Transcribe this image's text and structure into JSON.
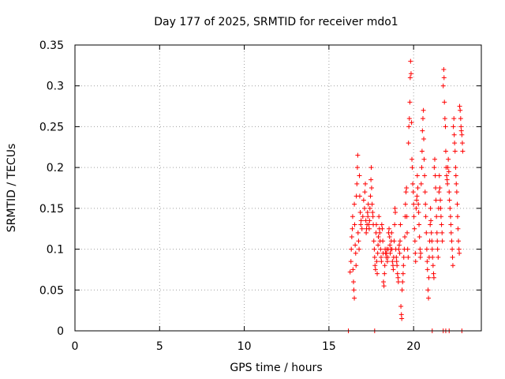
{
  "chart_data": {
    "type": "scatter",
    "title": "Day 177 of 2025, SRMTID for receiver mdo1",
    "xlabel": "GPS time / hours",
    "ylabel": "SRMTID / TECUs",
    "xlim": [
      0,
      24
    ],
    "ylim": [
      0,
      0.35
    ],
    "x_ticks": [
      0,
      5,
      10,
      15,
      20
    ],
    "x_tick_labels": [
      "0",
      "5",
      "10",
      "15",
      "20"
    ],
    "y_ticks": [
      0,
      0.05,
      0.1,
      0.15,
      0.2,
      0.25,
      0.3,
      0.35
    ],
    "y_tick_labels": [
      "0",
      "0.05",
      "0.1",
      "0.15",
      "0.2",
      "0.25",
      "0.3",
      "0.35"
    ],
    "grid": true,
    "marker": "plus",
    "color": "#ff0000",
    "series": [
      {
        "name": "SRMTID",
        "points": [
          [
            16.15,
            0.0
          ],
          [
            17.7,
            0.0
          ],
          [
            21.1,
            0.0
          ],
          [
            21.75,
            0.0
          ],
          [
            21.9,
            0.0
          ],
          [
            22.1,
            0.0
          ],
          [
            22.85,
            0.0
          ],
          [
            16.25,
            0.072
          ],
          [
            16.3,
            0.085
          ],
          [
            16.32,
            0.1
          ],
          [
            16.35,
            0.115
          ],
          [
            16.38,
            0.125
          ],
          [
            16.4,
            0.14
          ],
          [
            16.42,
            0.075
          ],
          [
            16.45,
            0.06
          ],
          [
            16.47,
            0.05
          ],
          [
            16.5,
            0.04
          ],
          [
            16.5,
            0.155
          ],
          [
            16.52,
            0.13
          ],
          [
            16.55,
            0.105
          ],
          [
            16.58,
            0.095
          ],
          [
            16.6,
            0.08
          ],
          [
            16.62,
            0.165
          ],
          [
            16.65,
            0.18
          ],
          [
            16.68,
            0.2
          ],
          [
            16.7,
            0.215
          ],
          [
            16.72,
            0.12
          ],
          [
            16.75,
            0.11
          ],
          [
            16.78,
            0.1
          ],
          [
            16.8,
            0.19
          ],
          [
            16.82,
            0.165
          ],
          [
            16.85,
            0.145
          ],
          [
            16.88,
            0.13
          ],
          [
            16.9,
            0.135
          ],
          [
            16.95,
            0.125
          ],
          [
            17.0,
            0.14
          ],
          [
            17.05,
            0.16
          ],
          [
            17.1,
            0.15
          ],
          [
            17.12,
            0.17
          ],
          [
            17.15,
            0.18
          ],
          [
            17.18,
            0.135
          ],
          [
            17.2,
            0.12
          ],
          [
            17.22,
            0.125
          ],
          [
            17.25,
            0.13
          ],
          [
            17.28,
            0.145
          ],
          [
            17.3,
            0.14
          ],
          [
            17.32,
            0.155
          ],
          [
            17.35,
            0.13
          ],
          [
            17.38,
            0.125
          ],
          [
            17.4,
            0.135
          ],
          [
            17.42,
            0.15
          ],
          [
            17.45,
            0.165
          ],
          [
            17.48,
            0.185
          ],
          [
            17.5,
            0.2
          ],
          [
            17.52,
            0.175
          ],
          [
            17.55,
            0.155
          ],
          [
            17.58,
            0.145
          ],
          [
            17.6,
            0.14
          ],
          [
            17.62,
            0.13
          ],
          [
            17.65,
            0.11
          ],
          [
            17.68,
            0.1
          ],
          [
            17.7,
            0.09
          ],
          [
            17.72,
            0.08
          ],
          [
            17.75,
            0.075
          ],
          [
            17.78,
            0.12
          ],
          [
            17.8,
            0.13
          ],
          [
            17.82,
            0.085
          ],
          [
            17.85,
            0.07
          ],
          [
            17.88,
            0.095
          ],
          [
            17.9,
            0.105
          ],
          [
            17.92,
            0.115
          ],
          [
            17.95,
            0.14
          ],
          [
            17.98,
            0.125
          ],
          [
            18.0,
            0.12
          ],
          [
            18.02,
            0.11
          ],
          [
            18.05,
            0.1
          ],
          [
            18.08,
            0.09
          ],
          [
            18.1,
            0.085
          ],
          [
            18.12,
            0.13
          ],
          [
            18.15,
            0.125
          ],
          [
            18.18,
            0.11
          ],
          [
            18.2,
            0.095
          ],
          [
            18.22,
            0.06
          ],
          [
            18.25,
            0.055
          ],
          [
            18.28,
            0.07
          ],
          [
            18.3,
            0.08
          ],
          [
            18.32,
            0.1
          ],
          [
            18.35,
            0.095
          ],
          [
            18.38,
            0.09
          ],
          [
            18.4,
            0.095
          ],
          [
            18.42,
            0.1
          ],
          [
            18.45,
            0.085
          ],
          [
            18.48,
            0.09
          ],
          [
            18.5,
            0.1
          ],
          [
            18.52,
            0.12
          ],
          [
            18.55,
            0.125
          ],
          [
            18.58,
            0.115
          ],
          [
            18.6,
            0.105
          ],
          [
            18.62,
            0.095
          ],
          [
            18.65,
            0.1
          ],
          [
            18.68,
            0.11
          ],
          [
            18.7,
            0.12
          ],
          [
            18.72,
            0.1
          ],
          [
            18.75,
            0.085
          ],
          [
            18.78,
            0.08
          ],
          [
            18.8,
            0.075
          ],
          [
            18.82,
            0.09
          ],
          [
            18.85,
            0.11
          ],
          [
            18.88,
            0.13
          ],
          [
            18.9,
            0.15
          ],
          [
            18.92,
            0.145
          ],
          [
            18.95,
            0.1
          ],
          [
            18.98,
            0.09
          ],
          [
            19.0,
            0.085
          ],
          [
            19.02,
            0.08
          ],
          [
            19.05,
            0.07
          ],
          [
            19.08,
            0.065
          ],
          [
            19.1,
            0.06
          ],
          [
            19.12,
            0.1
          ],
          [
            19.15,
            0.105
          ],
          [
            19.18,
            0.095
          ],
          [
            19.2,
            0.11
          ],
          [
            19.22,
            0.13
          ],
          [
            19.25,
            0.03
          ],
          [
            19.28,
            0.02
          ],
          [
            19.3,
            0.015
          ],
          [
            19.32,
            0.05
          ],
          [
            19.35,
            0.06
          ],
          [
            19.38,
            0.07
          ],
          [
            19.4,
            0.08
          ],
          [
            19.42,
            0.09
          ],
          [
            19.45,
            0.1
          ],
          [
            19.48,
            0.115
          ],
          [
            19.5,
            0.14
          ],
          [
            19.52,
            0.155
          ],
          [
            19.55,
            0.17
          ],
          [
            19.58,
            0.175
          ],
          [
            19.6,
            0.14
          ],
          [
            19.62,
            0.12
          ],
          [
            19.65,
            0.1
          ],
          [
            19.68,
            0.09
          ],
          [
            19.7,
            0.23
          ],
          [
            19.72,
            0.25
          ],
          [
            19.75,
            0.26
          ],
          [
            19.78,
            0.28
          ],
          [
            19.8,
            0.31
          ],
          [
            19.82,
            0.33
          ],
          [
            19.85,
            0.315
          ],
          [
            19.88,
            0.255
          ],
          [
            19.9,
            0.21
          ],
          [
            19.92,
            0.2
          ],
          [
            19.95,
            0.18
          ],
          [
            19.98,
            0.17
          ],
          [
            20.0,
            0.155
          ],
          [
            20.02,
            0.14
          ],
          [
            20.05,
            0.125
          ],
          [
            20.08,
            0.11
          ],
          [
            20.1,
            0.095
          ],
          [
            20.12,
            0.085
          ],
          [
            20.15,
            0.15
          ],
          [
            20.18,
            0.16
          ],
          [
            20.2,
            0.165
          ],
          [
            20.22,
            0.19
          ],
          [
            20.25,
            0.175
          ],
          [
            20.28,
            0.155
          ],
          [
            20.3,
            0.145
          ],
          [
            20.32,
            0.13
          ],
          [
            20.35,
            0.115
          ],
          [
            20.38,
            0.1
          ],
          [
            20.4,
            0.09
          ],
          [
            20.42,
            0.095
          ],
          [
            20.45,
            0.18
          ],
          [
            20.48,
            0.2
          ],
          [
            20.5,
            0.22
          ],
          [
            20.52,
            0.245
          ],
          [
            20.55,
            0.26
          ],
          [
            20.58,
            0.27
          ],
          [
            20.6,
            0.235
          ],
          [
            20.62,
            0.21
          ],
          [
            20.65,
            0.19
          ],
          [
            20.68,
            0.17
          ],
          [
            20.7,
            0.155
          ],
          [
            20.72,
            0.14
          ],
          [
            20.75,
            0.12
          ],
          [
            20.78,
            0.1
          ],
          [
            20.8,
            0.085
          ],
          [
            20.82,
            0.075
          ],
          [
            20.85,
            0.05
          ],
          [
            20.88,
            0.04
          ],
          [
            20.9,
            0.065
          ],
          [
            20.92,
            0.09
          ],
          [
            20.95,
            0.11
          ],
          [
            20.98,
            0.13
          ],
          [
            21.0,
            0.15
          ],
          [
            21.02,
            0.135
          ],
          [
            21.05,
            0.12
          ],
          [
            21.08,
            0.11
          ],
          [
            21.1,
            0.1
          ],
          [
            21.12,
            0.09
          ],
          [
            21.15,
            0.08
          ],
          [
            21.18,
            0.07
          ],
          [
            21.2,
            0.065
          ],
          [
            21.22,
            0.2
          ],
          [
            21.25,
            0.21
          ],
          [
            21.28,
            0.19
          ],
          [
            21.3,
            0.175
          ],
          [
            21.32,
            0.16
          ],
          [
            21.35,
            0.14
          ],
          [
            21.38,
            0.12
          ],
          [
            21.4,
            0.11
          ],
          [
            21.42,
            0.1
          ],
          [
            21.45,
            0.09
          ],
          [
            21.48,
            0.15
          ],
          [
            21.5,
            0.17
          ],
          [
            21.52,
            0.19
          ],
          [
            21.55,
            0.175
          ],
          [
            21.58,
            0.16
          ],
          [
            21.6,
            0.15
          ],
          [
            21.62,
            0.14
          ],
          [
            21.65,
            0.13
          ],
          [
            21.68,
            0.12
          ],
          [
            21.7,
            0.11
          ],
          [
            21.75,
            0.3
          ],
          [
            21.78,
            0.32
          ],
          [
            21.8,
            0.31
          ],
          [
            21.82,
            0.28
          ],
          [
            21.85,
            0.26
          ],
          [
            21.88,
            0.25
          ],
          [
            21.9,
            0.22
          ],
          [
            21.92,
            0.2
          ],
          [
            21.95,
            0.19
          ],
          [
            21.98,
            0.185
          ],
          [
            22.0,
            0.18
          ],
          [
            22.02,
            0.2
          ],
          [
            22.05,
            0.21
          ],
          [
            22.08,
            0.195
          ],
          [
            22.1,
            0.17
          ],
          [
            22.12,
            0.16
          ],
          [
            22.15,
            0.15
          ],
          [
            22.18,
            0.14
          ],
          [
            22.2,
            0.13
          ],
          [
            22.22,
            0.12
          ],
          [
            22.25,
            0.11
          ],
          [
            22.28,
            0.1
          ],
          [
            22.3,
            0.09
          ],
          [
            22.32,
            0.08
          ],
          [
            22.35,
            0.25
          ],
          [
            22.38,
            0.26
          ],
          [
            22.4,
            0.24
          ],
          [
            22.42,
            0.23
          ],
          [
            22.45,
            0.22
          ],
          [
            22.48,
            0.2
          ],
          [
            22.5,
            0.19
          ],
          [
            22.52,
            0.18
          ],
          [
            22.55,
            0.17
          ],
          [
            22.58,
            0.155
          ],
          [
            22.6,
            0.14
          ],
          [
            22.62,
            0.125
          ],
          [
            22.65,
            0.11
          ],
          [
            22.68,
            0.1
          ],
          [
            22.7,
            0.095
          ],
          [
            22.72,
            0.275
          ],
          [
            22.75,
            0.27
          ],
          [
            22.78,
            0.26
          ],
          [
            22.8,
            0.25
          ],
          [
            22.82,
            0.245
          ],
          [
            22.85,
            0.24
          ],
          [
            22.88,
            0.23
          ],
          [
            22.9,
            0.22
          ]
        ]
      }
    ]
  }
}
